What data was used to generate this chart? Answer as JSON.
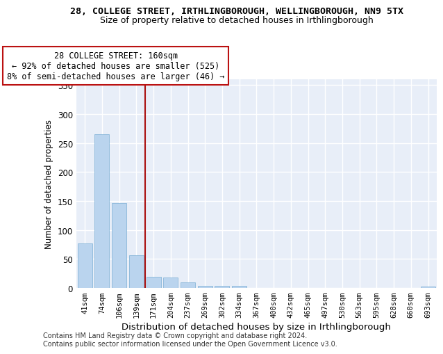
{
  "title": "28, COLLEGE STREET, IRTHLINGBOROUGH, WELLINGBOROUGH, NN9 5TX",
  "subtitle": "Size of property relative to detached houses in Irthlingborough",
  "xlabel": "Distribution of detached houses by size in Irthlingborough",
  "ylabel": "Number of detached properties",
  "categories": [
    "41sqm",
    "74sqm",
    "106sqm",
    "139sqm",
    "171sqm",
    "204sqm",
    "237sqm",
    "269sqm",
    "302sqm",
    "334sqm",
    "367sqm",
    "400sqm",
    "432sqm",
    "465sqm",
    "497sqm",
    "530sqm",
    "563sqm",
    "595sqm",
    "628sqm",
    "660sqm",
    "693sqm"
  ],
  "values": [
    77,
    265,
    146,
    56,
    19,
    18,
    10,
    4,
    4,
    4,
    0,
    0,
    0,
    0,
    0,
    0,
    0,
    0,
    0,
    0,
    3
  ],
  "bar_color": "#bad4ee",
  "bar_edge_color": "#7aafd4",
  "background_color": "#e8eef8",
  "grid_color": "#ffffff",
  "vline_index": 4,
  "vline_color": "#aa1111",
  "annotation_line1": "28 COLLEGE STREET: 160sqm",
  "annotation_line2": "← 92% of detached houses are smaller (525)",
  "annotation_line3": "8% of semi-detached houses are larger (46) →",
  "annotation_box_facecolor": "#ffffff",
  "annotation_box_edgecolor": "#bb1111",
  "ylim": [
    0,
    360
  ],
  "yticks": [
    0,
    50,
    100,
    150,
    200,
    250,
    300,
    350
  ],
  "footnote_line1": "Contains HM Land Registry data © Crown copyright and database right 2024.",
  "footnote_line2": "Contains public sector information licensed under the Open Government Licence v3.0."
}
